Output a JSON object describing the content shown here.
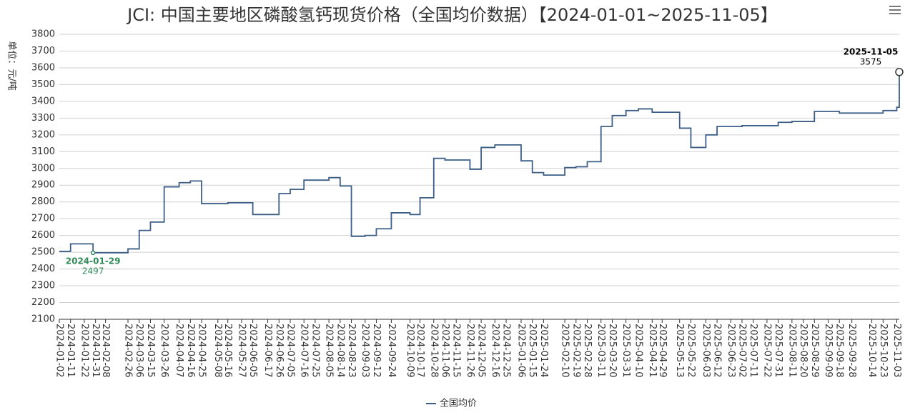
{
  "chart_data": {
    "type": "line",
    "title": "JCI: 中国主要地区磷酸氢钙现货价格（全国均价数据）【2024-01-01~2025-11-05】",
    "y_label": "单位：元/吨",
    "x": [
      "2024-01-02",
      "2024-01-11",
      "2024-01-22",
      "2024-01-29",
      "2024-01-31",
      "2024-02-08",
      "2024-02-26",
      "2024-03-06",
      "2024-03-15",
      "2024-03-26",
      "2024-04-07",
      "2024-04-16",
      "2024-04-25",
      "2024-05-08",
      "2024-05-16",
      "2024-05-27",
      "2024-06-05",
      "2024-06-17",
      "2024-06-26",
      "2024-07-05",
      "2024-07-16",
      "2024-07-25",
      "2024-08-05",
      "2024-08-14",
      "2024-08-23",
      "2024-09-03",
      "2024-09-12",
      "2024-09-24",
      "2024-10-09",
      "2024-10-17",
      "2024-10-28",
      "2024-11-06",
      "2024-11-15",
      "2024-11-26",
      "2024-12-05",
      "2024-12-16",
      "2024-12-25",
      "2025-01-06",
      "2025-01-15",
      "2025-01-24",
      "2025-02-10",
      "2025-02-19",
      "2025-02-28",
      "2025-03-11",
      "2025-03-20",
      "2025-03-31",
      "2025-04-10",
      "2025-04-21",
      "2025-04-29",
      "2025-05-13",
      "2025-05-22",
      "2025-06-03",
      "2025-06-12",
      "2025-06-23",
      "2025-07-02",
      "2025-07-11",
      "2025-07-22",
      "2025-07-31",
      "2025-08-11",
      "2025-08-20",
      "2025-08-29",
      "2025-09-09",
      "2025-09-18",
      "2025-09-28",
      "2025-10-14",
      "2025-10-23",
      "2025-11-03",
      "2025-11-05"
    ],
    "series": [
      {
        "name": "全国均价",
        "color": "#3d5f87",
        "values": [
          2505,
          2550,
          2550,
          2497,
          2497,
          2497,
          2520,
          2630,
          2680,
          2890,
          2915,
          2925,
          2790,
          2790,
          2795,
          2795,
          2725,
          2725,
          2850,
          2875,
          2930,
          2930,
          2945,
          2895,
          2595,
          2600,
          2640,
          2735,
          2725,
          2825,
          3060,
          3050,
          3050,
          2995,
          3125,
          3140,
          3140,
          3045,
          2975,
          2960,
          3005,
          3010,
          3040,
          3250,
          3315,
          3345,
          3355,
          3335,
          3335,
          3240,
          3125,
          3200,
          3250,
          3250,
          3255,
          3255,
          3255,
          3275,
          3280,
          3280,
          3340,
          3340,
          3330,
          3330,
          3330,
          3345,
          3365,
          3575
        ]
      }
    ],
    "annotations": [
      {
        "index": 3,
        "color": "#2e8b57"
      },
      {
        "index": 67,
        "color": "#000000"
      }
    ],
    "xticks": [
      "2024-01-02",
      "2024-01-11",
      "2024-01-22",
      "2024-01-31",
      "2024-02-08",
      "2024-02-26",
      "2024-03-06",
      "2024-03-15",
      "2024-03-26",
      "2024-04-07",
      "2024-04-16",
      "2024-04-25",
      "2024-05-08",
      "2024-05-16",
      "2024-05-27",
      "2024-06-05",
      "2024-06-17",
      "2024-06-26",
      "2024-07-05",
      "2024-07-16",
      "2024-07-25",
      "2024-08-05",
      "2024-08-14",
      "2024-08-23",
      "2024-09-03",
      "2024-09-12",
      "2024-09-24",
      "2024-10-09",
      "2024-10-17",
      "2024-10-28",
      "2024-11-06",
      "2024-11-15",
      "2024-11-26",
      "2024-12-05",
      "2024-12-16",
      "2024-12-25",
      "2025-01-06",
      "2025-01-15",
      "2025-01-24",
      "2025-02-10",
      "2025-02-19",
      "2025-02-28",
      "2025-03-11",
      "2025-03-20",
      "2025-03-31",
      "2025-04-10",
      "2025-04-21",
      "2025-04-29",
      "2025-05-13",
      "2025-05-22",
      "2025-06-03",
      "2025-06-12",
      "2025-06-23",
      "2025-07-02",
      "2025-07-11",
      "2025-07-22",
      "2025-07-31",
      "2025-08-11",
      "2025-08-20",
      "2025-08-29",
      "2025-09-09",
      "2025-09-18",
      "2025-09-28",
      "2025-10-14",
      "2025-10-23",
      "2025-11-03"
    ],
    "xlim": [
      "2024-01-02",
      "2025-11-05"
    ],
    "ylim": [
      2100,
      3800
    ],
    "yticks": [
      2100,
      2200,
      2300,
      2400,
      2500,
      2600,
      2700,
      2800,
      2900,
      3000,
      3100,
      3200,
      3300,
      3400,
      3500,
      3600,
      3700,
      3800
    ],
    "grid": true,
    "step": true
  }
}
